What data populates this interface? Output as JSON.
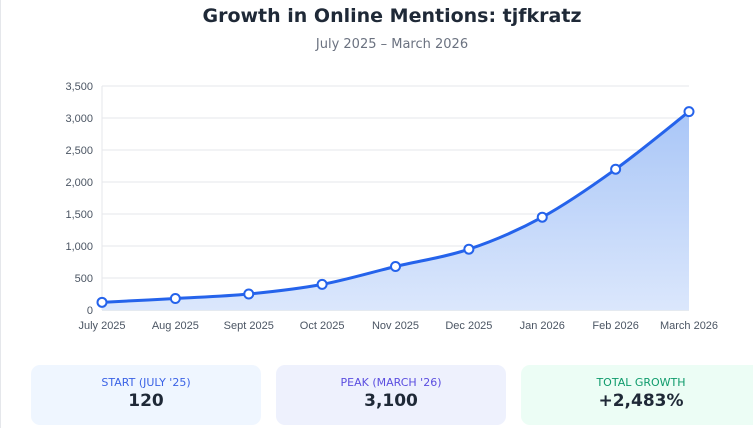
{
  "chart_data": {
    "type": "area",
    "title": "Growth in Online Mentions: tjfkratz",
    "subtitle": "July 2025 – March 2026",
    "categories": [
      "July 2025",
      "Aug 2025",
      "Sept 2025",
      "Oct 2025",
      "Nov 2025",
      "Dec 2025",
      "Jan 2026",
      "Feb 2026",
      "March 2026"
    ],
    "values": [
      120,
      180,
      250,
      400,
      680,
      950,
      1450,
      2200,
      3100
    ],
    "ylim": [
      0,
      3500
    ],
    "yticks": [
      "0",
      "500",
      "1,000",
      "1,500",
      "2,000",
      "2,500",
      "3,000",
      "3,500"
    ],
    "grid": true,
    "colors": {
      "line": "#2563eb",
      "fill_top": "#a9c6f7",
      "fill_bottom": "#dbe7fc"
    }
  },
  "stats": [
    {
      "label": "START (JULY '25)",
      "value": "120",
      "bg": "#eff6ff",
      "color": "#3b63e6"
    },
    {
      "label": "PEAK (MARCH '26)",
      "value": "3,100",
      "bg": "#eef1fd",
      "color": "#5b4ee0"
    },
    {
      "label": "TOTAL GROWTH",
      "value": "+2,483%",
      "bg": "#ecfdf5",
      "color": "#0f9b6c"
    }
  ]
}
